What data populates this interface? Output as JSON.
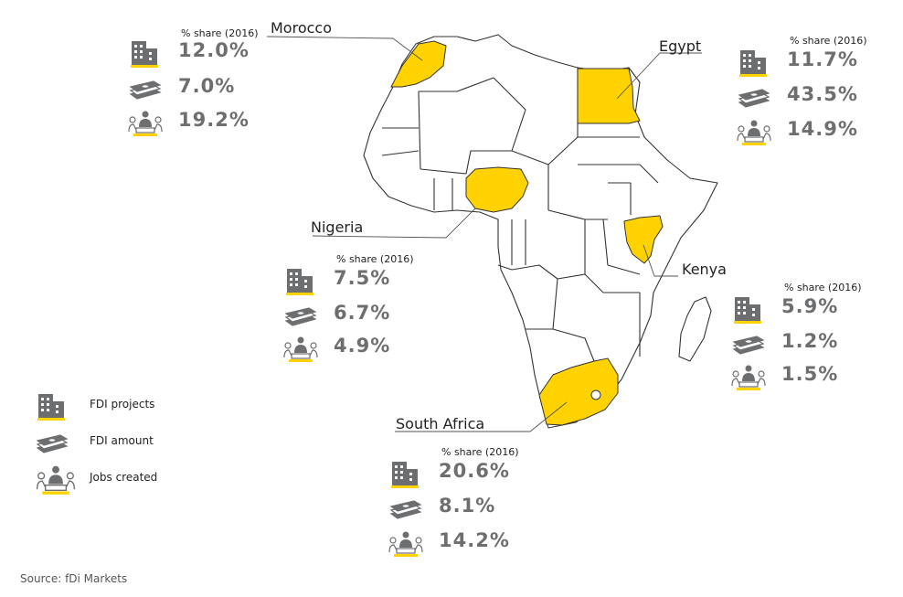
{
  "colors": {
    "highlight": "#ffd200",
    "icon_gray": "#6d6e70",
    "value_gray": "#6d6e70",
    "outline": "#333333"
  },
  "icons": {
    "projects": "building-icon",
    "amount": "banknotes-icon",
    "jobs": "meeting-people-icon"
  },
  "countries": [
    {
      "name": "Morocco",
      "share_label": "% share (2016)",
      "projects": "12.0%",
      "amount": "7.0%",
      "jobs": "19.2%"
    },
    {
      "name": "Egypt",
      "share_label": "% share (2016)",
      "projects": "11.7%",
      "amount": "43.5%",
      "jobs": "14.9%"
    },
    {
      "name": "Nigeria",
      "share_label": "% share (2016)",
      "projects": "7.5%",
      "amount": "6.7%",
      "jobs": "4.9%"
    },
    {
      "name": "Kenya",
      "share_label": "% share (2016)",
      "projects": "5.9%",
      "amount": "1.2%",
      "jobs": "1.5%"
    },
    {
      "name": "South Africa",
      "share_label": "% share (2016)",
      "projects": "20.6%",
      "amount": "8.1%",
      "jobs": "14.2%"
    }
  ],
  "legend": {
    "projects": "FDI projects",
    "amount": "FDI amount",
    "jobs": "Jobs created"
  },
  "source": "Source: fDi Markets"
}
